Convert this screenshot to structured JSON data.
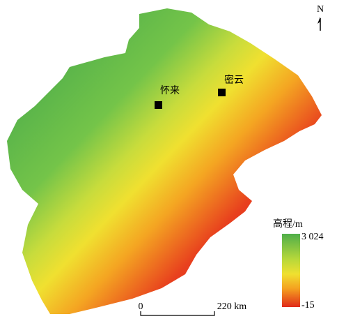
{
  "map": {
    "north_label": "N",
    "places": [
      {
        "name": "怀来"
      },
      {
        "name": "密云"
      }
    ],
    "legend": {
      "title": "高程/m",
      "max_label": "3 024",
      "min_label": "-15"
    },
    "scale_bar": {
      "start_label": "0",
      "end_label": "220 km"
    }
  }
}
